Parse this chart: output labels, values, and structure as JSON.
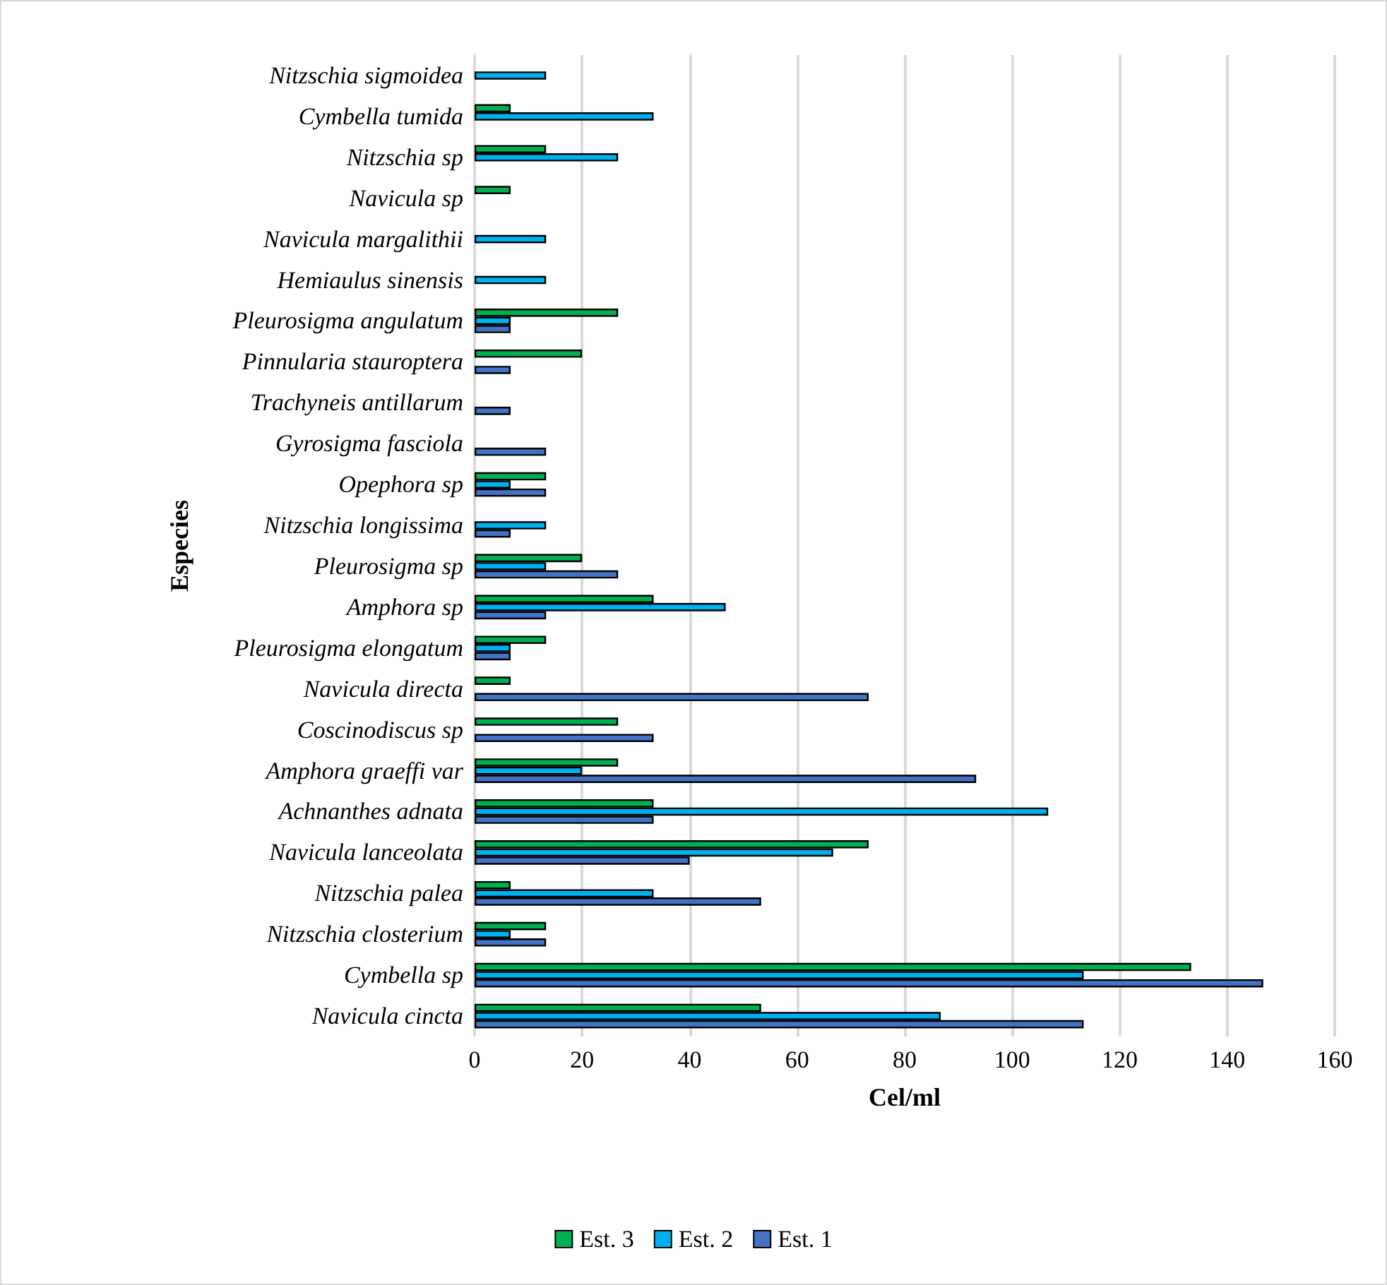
{
  "chart_data": {
    "type": "bar",
    "orientation": "horizontal",
    "xlabel": "Cel/ml",
    "ylabel": "Especies",
    "categories": [
      "Nitzschia sigmoidea",
      "Cymbella tumida",
      "Nitzschia sp",
      "Navicula sp",
      "Navicula margalithii",
      "Hemiaulus sinensis",
      "Pleurosigma angulatum",
      "Pinnularia stauroptera",
      "Trachyneis antillarum",
      "Gyrosigma fasciola",
      "Opephora sp",
      "Nitzschia longissima",
      "Pleurosigma sp",
      "Amphora sp",
      "Pleurosigma elongatum",
      "Navicula directa",
      "Coscinodiscus sp",
      "Amphora graeffi var",
      "Achnanthes adnata",
      "Navicula lanceolata",
      "Nitzschia palea",
      "Nitzschia closterium",
      "Cymbella sp",
      "Navicula cincta"
    ],
    "series": [
      {
        "name": "Est. 3",
        "color": "#00b050",
        "values": [
          null,
          6.7,
          13.3,
          6.7,
          null,
          null,
          26.7,
          20,
          null,
          null,
          13.3,
          null,
          20,
          33.3,
          13.3,
          6.7,
          26.7,
          26.7,
          33.3,
          73.3,
          6.7,
          13.3,
          133.3,
          53.3
        ]
      },
      {
        "name": "Est. 2",
        "color": "#00b0f0",
        "values": [
          13.3,
          33.3,
          26.7,
          null,
          13.3,
          13.3,
          6.7,
          null,
          null,
          null,
          6.7,
          13.3,
          13.3,
          46.7,
          6.7,
          null,
          null,
          20,
          106.7,
          66.7,
          33.3,
          6.7,
          113.3,
          86.7
        ]
      },
      {
        "name": "Est. 1",
        "color": "#4472c4",
        "values": [
          null,
          null,
          null,
          null,
          null,
          null,
          6.7,
          6.7,
          6.7,
          13.3,
          13.3,
          6.7,
          26.7,
          13.3,
          6.7,
          73.3,
          33.3,
          93.3,
          33.3,
          40,
          53.3,
          13.3,
          146.7,
          113.3
        ]
      }
    ],
    "xlim": [
      0,
      160
    ],
    "xticks": [
      0,
      20,
      40,
      60,
      80,
      100,
      120,
      140,
      160
    ],
    "grid": "x",
    "legend": "bottom"
  }
}
